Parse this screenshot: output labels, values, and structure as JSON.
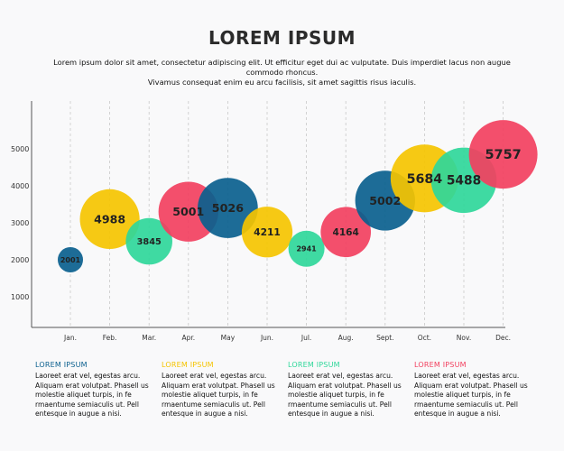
{
  "title": "LOREM IPSUM",
  "subtitle_line1": "Lorem ipsum dolor sit amet, consectetur adipiscing elit. Ut efficitur eget dui ac vulputate. Duis imperdiet lacus non augue commodo rhoncus.",
  "subtitle_line2": "Vivamus consequat enim eu arcu facilisis, sit amet sagittis risus iaculis.",
  "columns": [
    {
      "heading": "LOREM IPSUM",
      "color": "#0a5f8e",
      "text": "Laoreet erat vel, egestas arcu. Aliquam erat volutpat. Phasell us molestie aliquet turpis, in fe rmaentume semiaculis ut. Pell entesque in augue a nisi."
    },
    {
      "heading": "LOREM IPSUM",
      "color": "#f5c400",
      "text": "Laoreet erat vel, egestas arcu. Aliquam erat volutpat. Phasell us molestie aliquet turpis, in fe rmaentume semiaculis ut. Pell entesque in augue a nisi."
    },
    {
      "heading": "LOREM IPSUM",
      "color": "#2fd79a",
      "text": "Laoreet erat vel, egestas arcu. Aliquam erat volutpat. Phasell us molestie aliquet turpis, in fe rmaentume semiaculis ut. Pell entesque in augue a nisi."
    },
    {
      "heading": "LOREM IPSUM",
      "color": "#f2405f",
      "text": "Laoreet erat vel, egestas arcu. Aliquam erat volutpat. Phasell us molestie aliquet turpis, in fe rmaentume semiaculis ut. Pell entesque in augue a nisi."
    }
  ],
  "chart_data": {
    "type": "scatter",
    "subtype": "bubble",
    "categories": [
      "Jan.",
      "Feb.",
      "Mar.",
      "Apr.",
      "May",
      "Jun.",
      "Jul.",
      "Aug.",
      "Sept.",
      "Oct.",
      "Nov.",
      "Dec."
    ],
    "values": [
      2001,
      4988,
      3845,
      5001,
      5026,
      4211,
      2941,
      4164,
      5002,
      5684,
      5488,
      5757
    ],
    "y_positions": [
      2000,
      3100,
      2500,
      3300,
      3400,
      2750,
      2300,
      2750,
      3600,
      4200,
      4150,
      4850
    ],
    "labels": [
      "2001",
      "4988",
      "3845",
      "5001",
      "5026",
      "4211",
      "2941",
      "4164",
      "5002",
      "5684",
      "5488",
      "5757"
    ],
    "colors": [
      "#0a5f8e",
      "#f5c400",
      "#2fd79a",
      "#f2405f",
      "#0a5f8e",
      "#f5c400",
      "#2fd79a",
      "#f2405f",
      "#0a5f8e",
      "#f5c400",
      "#2fd79a",
      "#f2405f"
    ],
    "yticks": [
      1000,
      2000,
      3000,
      4000,
      5000
    ],
    "ylim": [
      0,
      6000
    ],
    "grid_vertical_dashed": true,
    "xlabel": "",
    "ylabel": ""
  }
}
